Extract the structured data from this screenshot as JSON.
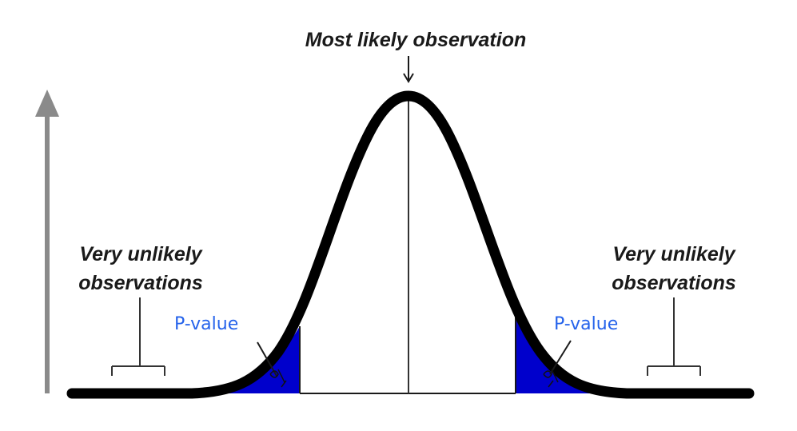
{
  "diagram": {
    "title": "Most likely observation",
    "left_label": {
      "line1": "Very unlikely",
      "line2": "observations"
    },
    "right_label": {
      "line1": "Very unlikely",
      "line2": "observations"
    },
    "left_pvalue": "P-value",
    "right_pvalue": "P-value",
    "colors": {
      "curve": "#000000",
      "tail_fill": "#0000cc",
      "axis_arrow": "#8a8a8a",
      "pvalue_text": "#2563eb"
    }
  }
}
